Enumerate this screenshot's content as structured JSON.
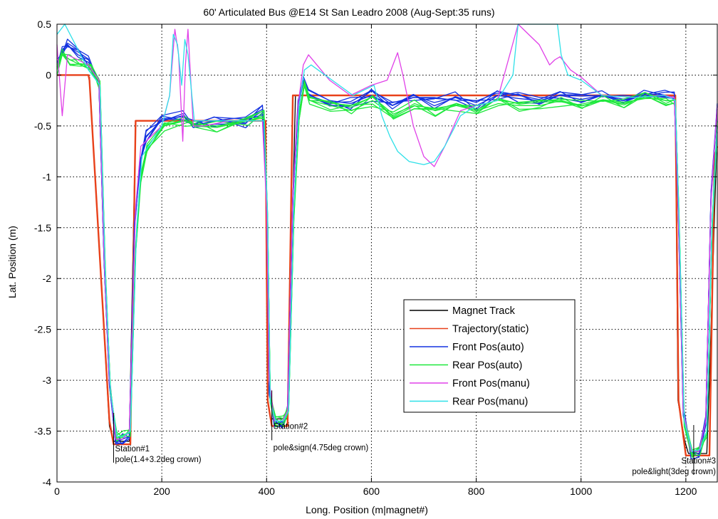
{
  "chart_data": {
    "type": "line",
    "title": "60' Articulated Bus @E14 St San Leadro 2008 (Aug-Sept:35 runs)",
    "xlabel": "Long. Position (m|magnet#)",
    "ylabel": "Lat. Position (m)",
    "xlim": [
      0,
      1260
    ],
    "ylim": [
      -4,
      0.5
    ],
    "xticks": [
      0,
      200,
      400,
      600,
      800,
      1000,
      1200
    ],
    "yticks": [
      0.5,
      0,
      -0.5,
      -1,
      -1.5,
      -2,
      -2.5,
      -3,
      -3.5,
      -4
    ],
    "grid": true,
    "legend_position": "lower-center-right",
    "series": [
      {
        "name": "Magnet Track",
        "color": "#000000",
        "x": [
          0,
          58,
          62,
          100,
          108,
          138,
          150,
          155,
          398,
          402,
          408,
          412,
          440,
          455,
          460,
          1180,
          1185,
          1198,
          1205,
          1240,
          1245,
          1260
        ],
        "y": [
          0,
          0,
          -0.02,
          -3.45,
          -3.6,
          -3.6,
          -0.45,
          -0.45,
          -0.45,
          -3.2,
          -3.38,
          -3.38,
          -3.38,
          -0.2,
          -0.2,
          -0.2,
          -3.2,
          -3.6,
          -3.72,
          -3.72,
          -3.0,
          -0.5
        ]
      },
      {
        "name": "Trajectory(static)",
        "color": "#e8411a",
        "x": [
          0,
          60,
          62,
          100,
          108,
          140,
          150,
          153,
          398,
          402,
          410,
          440,
          450,
          462,
          1180,
          1186,
          1200,
          1205,
          1245,
          1255,
          1260
        ],
        "y": [
          0,
          0,
          -0.05,
          -3.4,
          -3.63,
          -3.63,
          -0.45,
          -0.45,
          -0.45,
          -3.2,
          -3.45,
          -3.45,
          -0.2,
          -0.2,
          -0.2,
          -3.2,
          -3.74,
          -3.74,
          -3.74,
          -0.8,
          -0.7
        ]
      },
      {
        "name": "Front Pos(auto)",
        "color": "#1432e0",
        "x": [
          0,
          10,
          20,
          40,
          60,
          80,
          90,
          100,
          112,
          125,
          138,
          148,
          158,
          170,
          200,
          240,
          260,
          300,
          360,
          392,
          400,
          405,
          415,
          430,
          440,
          450,
          460,
          470,
          480,
          520,
          560,
          600,
          640,
          680,
          720,
          760,
          800,
          840,
          880,
          920,
          960,
          1000,
          1040,
          1080,
          1120,
          1160,
          1178,
          1185,
          1195,
          1210,
          1225,
          1238,
          1248,
          1260
        ],
        "y": [
          0.1,
          0.25,
          0.3,
          0.2,
          0.15,
          -0.05,
          -1.8,
          -3.0,
          -3.6,
          -3.58,
          -3.55,
          -1.5,
          -0.9,
          -0.6,
          -0.45,
          -0.4,
          -0.5,
          -0.45,
          -0.47,
          -0.35,
          -1.2,
          -3.1,
          -3.42,
          -3.42,
          -3.3,
          -1.2,
          -0.3,
          -0.05,
          -0.15,
          -0.25,
          -0.28,
          -0.2,
          -0.3,
          -0.2,
          -0.27,
          -0.22,
          -0.3,
          -0.2,
          -0.23,
          -0.25,
          -0.2,
          -0.24,
          -0.2,
          -0.25,
          -0.18,
          -0.2,
          -0.22,
          -1.2,
          -3.3,
          -3.72,
          -3.7,
          -3.4,
          -1.2,
          -0.3
        ]
      },
      {
        "name": "Rear Pos(auto)",
        "color": "#1ee83c",
        "x": [
          0,
          10,
          25,
          45,
          65,
          82,
          92,
          102,
          114,
          127,
          140,
          150,
          160,
          172,
          205,
          245,
          265,
          305,
          365,
          395,
          402,
          407,
          417,
          432,
          442,
          452,
          462,
          472,
          482,
          522,
          562,
          602,
          642,
          682,
          722,
          762,
          802,
          842,
          882,
          922,
          962,
          1002,
          1042,
          1082,
          1122,
          1162,
          1180,
          1187,
          1197,
          1212,
          1227,
          1240,
          1250,
          1260
        ],
        "y": [
          0.05,
          0.2,
          0.15,
          0.1,
          0.05,
          -0.1,
          -1.9,
          -3.1,
          -3.55,
          -3.55,
          -3.5,
          -1.7,
          -1.0,
          -0.7,
          -0.5,
          -0.45,
          -0.48,
          -0.5,
          -0.45,
          -0.4,
          -1.4,
          -3.2,
          -3.4,
          -3.4,
          -3.25,
          -1.4,
          -0.4,
          -0.1,
          -0.25,
          -0.3,
          -0.35,
          -0.25,
          -0.4,
          -0.28,
          -0.35,
          -0.3,
          -0.35,
          -0.28,
          -0.3,
          -0.3,
          -0.25,
          -0.3,
          -0.25,
          -0.28,
          -0.22,
          -0.25,
          -0.25,
          -1.4,
          -3.4,
          -3.7,
          -3.68,
          -3.5,
          -1.5,
          -0.5
        ]
      },
      {
        "name": "Front Pos(manu)",
        "color": "#e040e8",
        "x": [
          0,
          10,
          20,
          60,
          80,
          90,
          100,
          112,
          125,
          138,
          150,
          160,
          200,
          215,
          225,
          232,
          240,
          245,
          250,
          260,
          280,
          330,
          392,
          400,
          405,
          415,
          430,
          440,
          450,
          460,
          470,
          480,
          520,
          560,
          600,
          630,
          650,
          660,
          680,
          700,
          720,
          740,
          770,
          800,
          840,
          880,
          920,
          940,
          950,
          960,
          980,
          1000,
          1040,
          1100,
          1160,
          1178,
          1185,
          1195,
          1210,
          1225,
          1238,
          1248,
          1260
        ],
        "y": [
          0.3,
          -0.4,
          0.2,
          0.1,
          -0.05,
          -1.8,
          -3.0,
          -3.58,
          -3.58,
          -3.5,
          -1.3,
          -0.7,
          -0.5,
          -0.2,
          0.45,
          0.2,
          -0.65,
          0.1,
          0.45,
          -0.5,
          -0.5,
          -0.45,
          -0.45,
          -1.3,
          -3.0,
          -3.4,
          -3.4,
          -3.3,
          -1.2,
          -0.3,
          0.1,
          0.2,
          -0.05,
          -0.2,
          -0.1,
          -0.05,
          0.22,
          0.0,
          -0.5,
          -0.8,
          -0.9,
          -0.7,
          -0.35,
          -0.3,
          -0.25,
          0.5,
          0.3,
          0.1,
          0.15,
          0.18,
          0.05,
          -0.02,
          -0.2,
          -0.22,
          -0.2,
          -0.22,
          -1.2,
          -3.3,
          -3.7,
          -3.7,
          -3.4,
          -1.2,
          -0.3
        ]
      },
      {
        "name": "Rear Pos(manu)",
        "color": "#2ee0e8",
        "x": [
          0,
          15,
          30,
          60,
          82,
          92,
          102,
          114,
          127,
          140,
          152,
          162,
          200,
          215,
          222,
          230,
          238,
          244,
          250,
          262,
          285,
          335,
          395,
          402,
          407,
          417,
          432,
          442,
          452,
          462,
          472,
          485,
          525,
          565,
          605,
          620,
          635,
          650,
          672,
          700,
          720,
          740,
          770,
          800,
          840,
          870,
          880,
          890,
          955,
          962,
          975,
          1000,
          1040,
          1100,
          1160,
          1180,
          1187,
          1197,
          1212,
          1227,
          1240,
          1250,
          1260
        ],
        "y": [
          0.4,
          0.5,
          0.35,
          0.05,
          -0.1,
          -1.9,
          -3.1,
          -3.55,
          -3.55,
          -3.5,
          -1.5,
          -0.8,
          -0.5,
          -0.2,
          0.4,
          0.3,
          -0.1,
          0.35,
          0.2,
          -0.45,
          -0.45,
          -0.45,
          -0.45,
          -1.4,
          -3.2,
          -3.4,
          -3.4,
          -3.3,
          -1.3,
          -0.3,
          0.05,
          0.1,
          -0.05,
          -0.2,
          -0.1,
          -0.4,
          -0.6,
          -0.75,
          -0.85,
          -0.88,
          -0.85,
          -0.7,
          -0.4,
          -0.3,
          -0.25,
          0.0,
          0.5,
          0.5,
          0.5,
          0.2,
          0.0,
          -0.05,
          -0.2,
          -0.22,
          -0.2,
          -0.25,
          -1.4,
          -3.4,
          -3.7,
          -3.68,
          -3.5,
          -1.5,
          -0.5
        ]
      }
    ],
    "annotations": [
      {
        "lines": [
          "Station#1",
          "pole(1.4+3.2deg crown)"
        ],
        "x": 108,
        "y": -3.6
      },
      {
        "lines": [
          "Station#2",
          "",
          "pole&sign(4.75deg crown)"
        ],
        "x": 410,
        "y": -3.38
      },
      {
        "lines": [
          "Station#3",
          "pole&light(3deg crown)"
        ],
        "x": 1215,
        "y": -3.72
      }
    ]
  }
}
